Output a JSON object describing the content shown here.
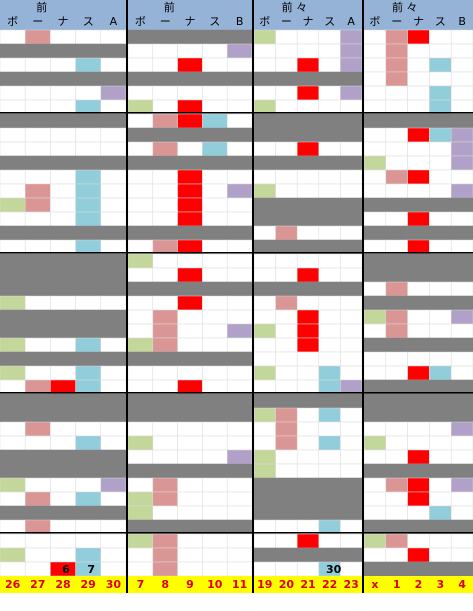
{
  "panels": [
    {
      "title": "前",
      "columns": [
        "ボ",
        "ー",
        "ナ",
        "ス",
        "A"
      ],
      "footer": [
        "26",
        "27",
        "28",
        "29",
        "30"
      ],
      "cell_texts": [
        "6",
        "7"
      ]
    },
    {
      "title": "前",
      "columns": [
        "ボ",
        "ー",
        "ナ",
        "ス",
        "B"
      ],
      "footer": [
        "7",
        "8",
        "9",
        "10",
        "11"
      ],
      "cell_texts": []
    },
    {
      "title": "前 々",
      "columns": [
        "ボ",
        "ー",
        "ナ",
        "ス",
        "A"
      ],
      "footer": [
        "19",
        "20",
        "21",
        "22",
        "23"
      ],
      "cell_texts": [
        "30"
      ]
    },
    {
      "title": "前 々",
      "columns": [
        "ボ",
        "ー",
        "ナ",
        "ス",
        "B"
      ],
      "footer": [
        "x",
        "1",
        "2",
        "3",
        "4"
      ],
      "cell_texts": []
    }
  ]
}
